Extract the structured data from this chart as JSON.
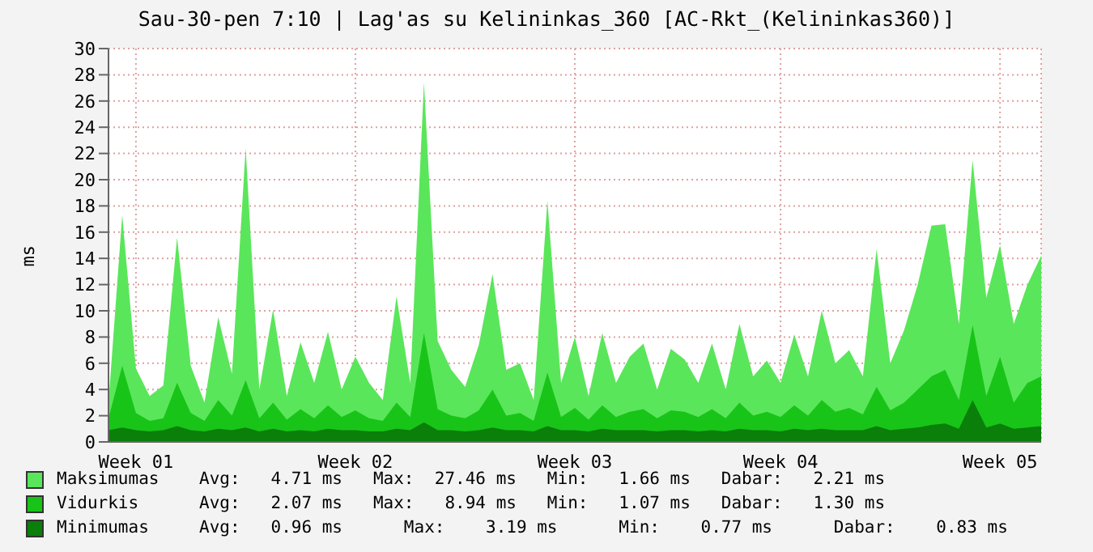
{
  "chart_data": {
    "type": "area",
    "title": "Sau-30-pen 7:10 | Lag'as su Kelininkas_360 [AC-Rkt_(Kelininkas360)]",
    "ylabel": "ms",
    "categories": [
      null,
      null,
      "Week 01",
      null,
      null,
      null,
      null,
      null,
      null,
      null,
      null,
      null,
      null,
      null,
      null,
      null,
      null,
      null,
      "Week 02",
      null,
      null,
      null,
      null,
      null,
      null,
      null,
      null,
      null,
      null,
      null,
      null,
      null,
      null,
      null,
      "Week 03",
      null,
      null,
      null,
      null,
      null,
      null,
      null,
      null,
      null,
      null,
      null,
      null,
      null,
      null,
      "Week 04",
      null,
      null,
      null,
      null,
      null,
      null,
      null,
      null,
      null,
      null,
      null,
      null,
      null,
      null,
      null,
      "Week 05",
      null,
      null,
      null
    ],
    "series": [
      {
        "name": "Maksimumas",
        "color": "#5ae65a",
        "values": [
          3,
          17.3,
          5.6,
          3.5,
          4.3,
          15.6,
          5.8,
          3,
          9.5,
          5.2,
          22.4,
          4,
          10.1,
          3.5,
          7.6,
          4.5,
          8.4,
          4,
          6.5,
          4.5,
          3.2,
          11.1,
          4.5,
          27.4,
          7.7,
          5.5,
          4.2,
          7.4,
          12.8,
          5.5,
          6,
          3.2,
          18.4,
          4.5,
          8,
          3.5,
          8.3,
          4.5,
          6.5,
          7.5,
          4,
          7.1,
          6.3,
          4.5,
          7.5,
          4,
          9,
          5,
          6.2,
          4.5,
          8.2,
          5,
          10,
          6,
          7,
          5,
          14.7,
          6,
          8.5,
          12,
          16.5,
          16.6,
          9,
          21.5,
          11,
          15,
          9,
          12,
          14.2
        ]
      },
      {
        "name": "Vidurkis",
        "color": "#18c418",
        "values": [
          1.8,
          5.8,
          2.2,
          1.6,
          1.8,
          4.5,
          2.2,
          1.6,
          3.2,
          2,
          4.7,
          1.8,
          3,
          1.7,
          2.5,
          1.8,
          2.8,
          1.9,
          2.4,
          1.8,
          1.6,
          3,
          1.9,
          8.3,
          2.5,
          2,
          1.8,
          2.4,
          4,
          2,
          2.2,
          1.6,
          5.3,
          1.9,
          2.6,
          1.7,
          2.8,
          1.9,
          2.3,
          2.5,
          1.8,
          2.4,
          2.3,
          1.9,
          2.5,
          1.8,
          3,
          2,
          2.3,
          1.9,
          2.8,
          2,
          3.2,
          2.3,
          2.6,
          2.1,
          4.2,
          2.4,
          3,
          4,
          5,
          5.5,
          3.2,
          8.9,
          3.5,
          6.5,
          3,
          4.5,
          5
        ]
      },
      {
        "name": "Minimumas",
        "color": "#0a7f0a",
        "values": [
          0.9,
          1.1,
          0.9,
          0.8,
          0.9,
          1.2,
          0.9,
          0.8,
          1,
          0.9,
          1.1,
          0.8,
          1,
          0.8,
          0.9,
          0.8,
          1,
          0.9,
          0.9,
          0.8,
          0.8,
          1,
          0.9,
          1.5,
          0.9,
          0.9,
          0.8,
          0.9,
          1.1,
          0.9,
          0.9,
          0.8,
          1.2,
          0.9,
          0.9,
          0.8,
          1,
          0.9,
          0.9,
          0.9,
          0.8,
          0.9,
          0.9,
          0.8,
          0.9,
          0.8,
          1,
          0.9,
          0.9,
          0.8,
          1,
          0.9,
          1,
          0.9,
          0.9,
          0.9,
          1.2,
          0.9,
          1,
          1.1,
          1.3,
          1.4,
          1,
          3.2,
          1.1,
          1.4,
          1,
          1.1,
          1.2
        ]
      }
    ],
    "ylim": [
      0,
      30
    ],
    "yticks": [
      0,
      2,
      4,
      6,
      8,
      10,
      12,
      14,
      16,
      18,
      20,
      22,
      24,
      26,
      28,
      30
    ],
    "grid": true,
    "legend": "bottom",
    "annotations": [
      "Avg:   4.71 ms   Max:  27.46 ms   Min:   1.66 ms   Dabar:   2.21 ms",
      "Avg:   2.07 ms   Max:   8.94 ms   Min:   1.07 ms   Dabar:   1.30 ms",
      "Avg:   0.96 ms      Max:    3.19 ms      Min:    0.77 ms      Dabar:    0.83 ms"
    ]
  }
}
